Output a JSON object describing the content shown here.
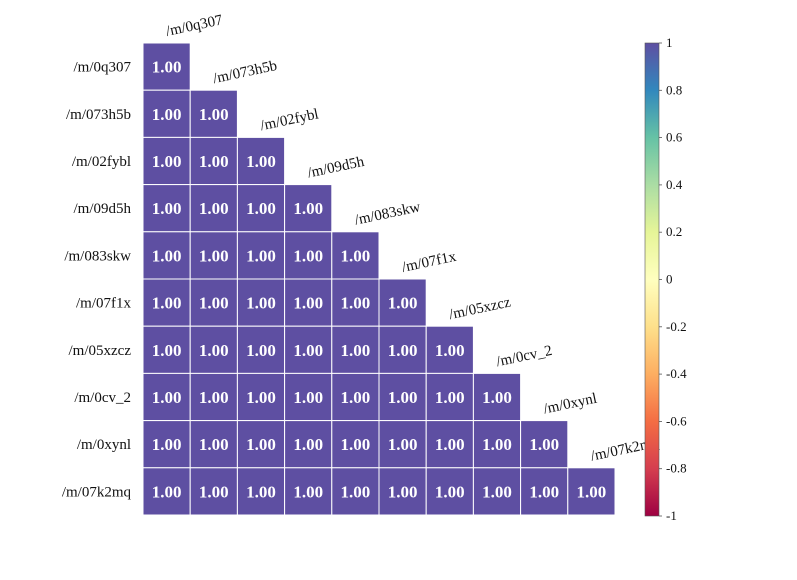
{
  "chart_data": {
    "type": "heatmap",
    "subtype": "lower-triangular correlation matrix",
    "variables": [
      "/m/0q307",
      "/m/073h5b",
      "/m/02fybl",
      "/m/09d5h",
      "/m/083skw",
      "/m/07f1x",
      "/m/05xzcz",
      "/m/0cv_2",
      "/m/0xynl",
      "/m/07k2mq"
    ],
    "values": [
      [
        1.0
      ],
      [
        1.0,
        1.0
      ],
      [
        1.0,
        1.0,
        1.0
      ],
      [
        1.0,
        1.0,
        1.0,
        1.0
      ],
      [
        1.0,
        1.0,
        1.0,
        1.0,
        1.0
      ],
      [
        1.0,
        1.0,
        1.0,
        1.0,
        1.0,
        1.0
      ],
      [
        1.0,
        1.0,
        1.0,
        1.0,
        1.0,
        1.0,
        1.0
      ],
      [
        1.0,
        1.0,
        1.0,
        1.0,
        1.0,
        1.0,
        1.0,
        1.0
      ],
      [
        1.0,
        1.0,
        1.0,
        1.0,
        1.0,
        1.0,
        1.0,
        1.0,
        1.0
      ],
      [
        1.0,
        1.0,
        1.0,
        1.0,
        1.0,
        1.0,
        1.0,
        1.0,
        1.0,
        1.0
      ]
    ],
    "value_format": "0.00",
    "colorbar": {
      "range": [
        -1,
        1
      ],
      "ticks": [
        1,
        0.8,
        0.6,
        0.4,
        0.2,
        0,
        -0.2,
        -0.4,
        -0.6,
        -0.8,
        -1
      ],
      "tick_labels": [
        "1",
        "0.8",
        "0.6",
        "0.4",
        "0.2",
        "0",
        "-0.2",
        "-0.4",
        "-0.6",
        "-0.8",
        "-1"
      ],
      "colormap": "Spectral",
      "placement": "right"
    },
    "cell_color": "#5e4fa2",
    "title": "",
    "xlabel": "",
    "ylabel": ""
  }
}
